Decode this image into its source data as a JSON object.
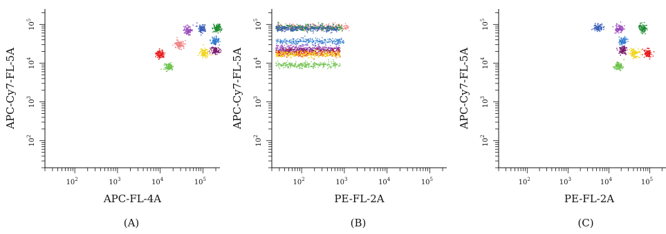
{
  "figure": {
    "panel_labels": [
      "(A)",
      "(B)",
      "(C)"
    ]
  },
  "chart_data": [
    {
      "type": "scatter",
      "panel": "(A)",
      "xlabel": "APC-FL-4A",
      "ylabel": "APC-Cy7-FL-5A",
      "xscale": "log",
      "yscale": "log",
      "xlim": [
        20,
        250000
      ],
      "ylim": [
        20,
        250000
      ],
      "x_ticks": [
        "10^2",
        "10^3",
        "10^4",
        "10^5"
      ],
      "y_ticks": [
        "10^2",
        "10^3",
        "10^4",
        "10^5"
      ],
      "grid": false,
      "legend": "none",
      "clusters": [
        {
          "color": "#e8191b",
          "x": 10000,
          "y": 17000
        },
        {
          "color": "#6cc14a",
          "x": 16000,
          "y": 8000
        },
        {
          "color": "#f08080",
          "x": 28000,
          "y": 30000
        },
        {
          "color": "#9b4dbe",
          "x": 45000,
          "y": 70000
        },
        {
          "color": "#3a5db8",
          "x": 95000,
          "y": 80000
        },
        {
          "color": "#f2d311",
          "x": 110000,
          "y": 18000
        },
        {
          "color": "#2f7bd0",
          "x": 190000,
          "y": 38000
        },
        {
          "color": "#7a1a6c",
          "x": 200000,
          "y": 21000
        },
        {
          "color": "#1a8a2e",
          "x": 210000,
          "y": 80000
        }
      ]
    },
    {
      "type": "scatter",
      "panel": "(B)",
      "xlabel": "PE-FL-2A",
      "ylabel": "APC-Cy7-FL-5A",
      "xscale": "log",
      "yscale": "log",
      "xlim": [
        20,
        250000
      ],
      "ylim": [
        20,
        250000
      ],
      "x_ticks": [
        "10^2",
        "10^3",
        "10^4",
        "10^5"
      ],
      "y_ticks": [
        "10^2",
        "10^3",
        "10^4",
        "10^5"
      ],
      "grid": false,
      "legend": "none",
      "bands": [
        {
          "color": "#f08080",
          "x_range": [
            25,
            1300
          ],
          "y": 85000
        },
        {
          "color": "#1a8a2e",
          "x_range": [
            25,
            900
          ],
          "y": 82000
        },
        {
          "color": "#3a5db8",
          "x_range": [
            25,
            700
          ],
          "y": 78000
        },
        {
          "color": "#2f7bd0",
          "x_range": [
            25,
            1000
          ],
          "y": 37000
        },
        {
          "color": "#9b4dbe",
          "x_range": [
            25,
            800
          ],
          "y": 24000
        },
        {
          "color": "#7a1a6c",
          "x_range": [
            25,
            800
          ],
          "y": 21000
        },
        {
          "color": "#e8191b",
          "x_range": [
            25,
            800
          ],
          "y": 18000
        },
        {
          "color": "#f2d311",
          "x_range": [
            25,
            800
          ],
          "y": 17000
        },
        {
          "color": "#6cc14a",
          "x_range": [
            25,
            800
          ],
          "y": 9000
        }
      ]
    },
    {
      "type": "scatter",
      "panel": "(C)",
      "xlabel": "PE-FL-2A",
      "ylabel": "APC-Cy7-FL-5A",
      "xscale": "log",
      "yscale": "log",
      "xlim": [
        20,
        250000
      ],
      "ylim": [
        20,
        250000
      ],
      "x_ticks": [
        "10^2",
        "10^3",
        "10^4",
        "10^5"
      ],
      "y_ticks": [
        "10^2",
        "10^3",
        "10^4",
        "10^5"
      ],
      "grid": false,
      "legend": "none",
      "clusters": [
        {
          "color": "#3a5db8",
          "x": 5500,
          "y": 82000
        },
        {
          "color": "#9b4dbe",
          "x": 18000,
          "y": 78000
        },
        {
          "color": "#1a8a2e",
          "x": 70000,
          "y": 80000
        },
        {
          "color": "#2f7bd0",
          "x": 22000,
          "y": 38000
        },
        {
          "color": "#7a1a6c",
          "x": 22000,
          "y": 21000
        },
        {
          "color": "#f2d311",
          "x": 42000,
          "y": 18000
        },
        {
          "color": "#e8191b",
          "x": 90000,
          "y": 18000
        },
        {
          "color": "#6cc14a",
          "x": 17000,
          "y": 8500
        }
      ]
    }
  ]
}
